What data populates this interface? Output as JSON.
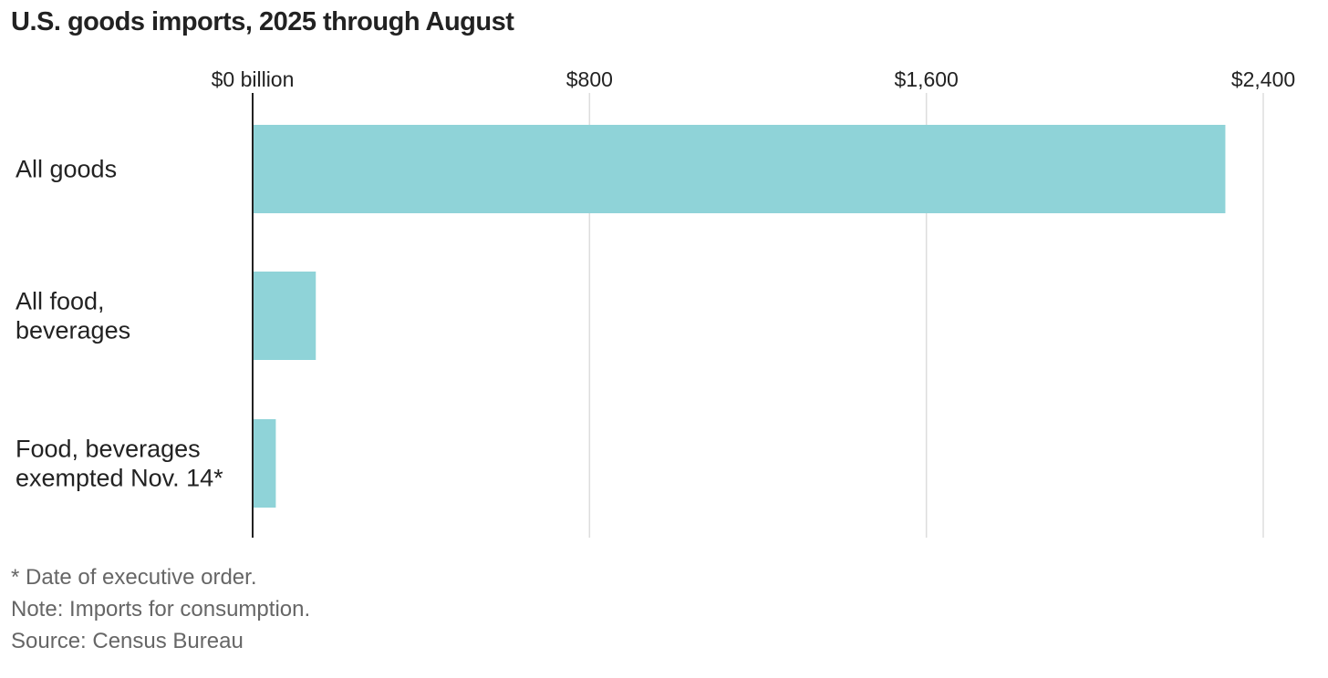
{
  "title": "U.S. goods imports, 2025 through August",
  "chart_data": {
    "type": "bar",
    "orientation": "horizontal",
    "title": "U.S. goods imports, 2025 through August",
    "xlabel": "",
    "ylabel": "",
    "unit": "billion",
    "categories": [
      [
        "All goods"
      ],
      [
        "All food,",
        "beverages"
      ],
      [
        "Food, beverages",
        "exempted Nov. 14*"
      ]
    ],
    "values": [
      2310,
      150,
      55
    ],
    "xlim": [
      0,
      2400
    ],
    "ticks": [
      0,
      800,
      1600,
      2400
    ],
    "tick_labels": [
      "$0 billion",
      "$800",
      "$1,600",
      "$2,400"
    ],
    "grid": true,
    "bar_color": "#8fd3d8",
    "gridline_color": "#dddddd",
    "axis_color": "#222222"
  },
  "notes": {
    "footnote": "* Date of executive order.",
    "note": "Note: Imports for consumption.",
    "source": "Source: Census Bureau"
  }
}
